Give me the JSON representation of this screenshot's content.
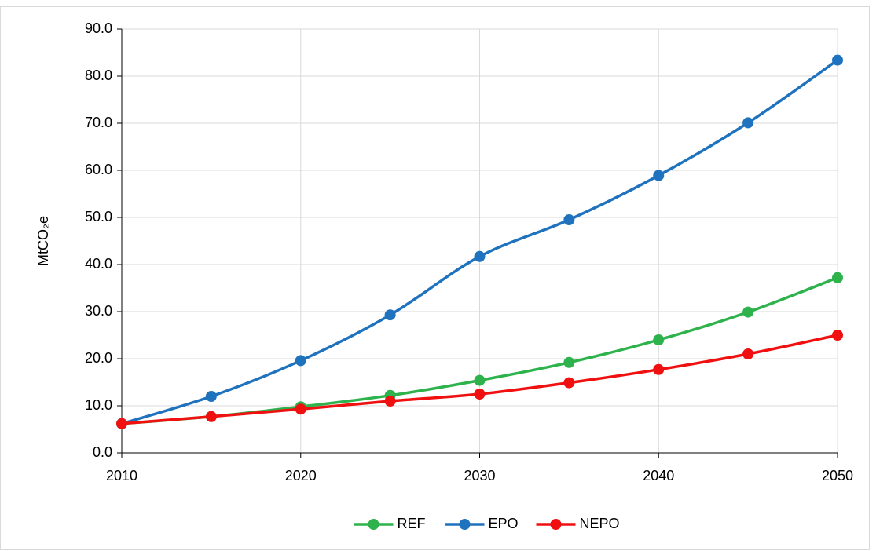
{
  "chart_data": {
    "type": "line",
    "y_label": "MtCO₂e",
    "x": [
      2010,
      2015,
      2020,
      2025,
      2030,
      2035,
      2040,
      2045,
      2050
    ],
    "series": [
      {
        "name": "REF",
        "color": "#2db24c",
        "values": [
          6.2,
          7.7,
          9.8,
          12.2,
          15.4,
          19.2,
          24.0,
          29.9,
          37.2
        ]
      },
      {
        "name": "EPO",
        "color": "#1f72bd",
        "values": [
          6.2,
          12.0,
          19.6,
          29.3,
          41.7,
          49.5,
          58.9,
          70.1,
          83.4
        ]
      },
      {
        "name": "NEPO",
        "color": "#f01010",
        "values": [
          6.2,
          7.7,
          9.3,
          11.0,
          12.5,
          14.9,
          17.7,
          21.0,
          25.0
        ]
      }
    ],
    "xlim": [
      2010,
      2050
    ],
    "xticks": [
      2010,
      2020,
      2030,
      2040,
      2050
    ],
    "ylim": [
      0,
      90
    ],
    "yticks": [
      {
        "value": 0,
        "label": "0.0"
      },
      {
        "value": 10,
        "label": "10.0"
      },
      {
        "value": 20,
        "label": "20.0"
      },
      {
        "value": 30,
        "label": "30.0"
      },
      {
        "value": 40,
        "label": "40.0"
      },
      {
        "value": 50,
        "label": "50.0"
      },
      {
        "value": 60,
        "label": "60.0"
      },
      {
        "value": 70,
        "label": "70.0"
      },
      {
        "value": 80,
        "label": "80.0"
      },
      {
        "value": 90,
        "label": "90.0"
      }
    ],
    "grid": true,
    "legend": "bottom",
    "smooth": true
  }
}
